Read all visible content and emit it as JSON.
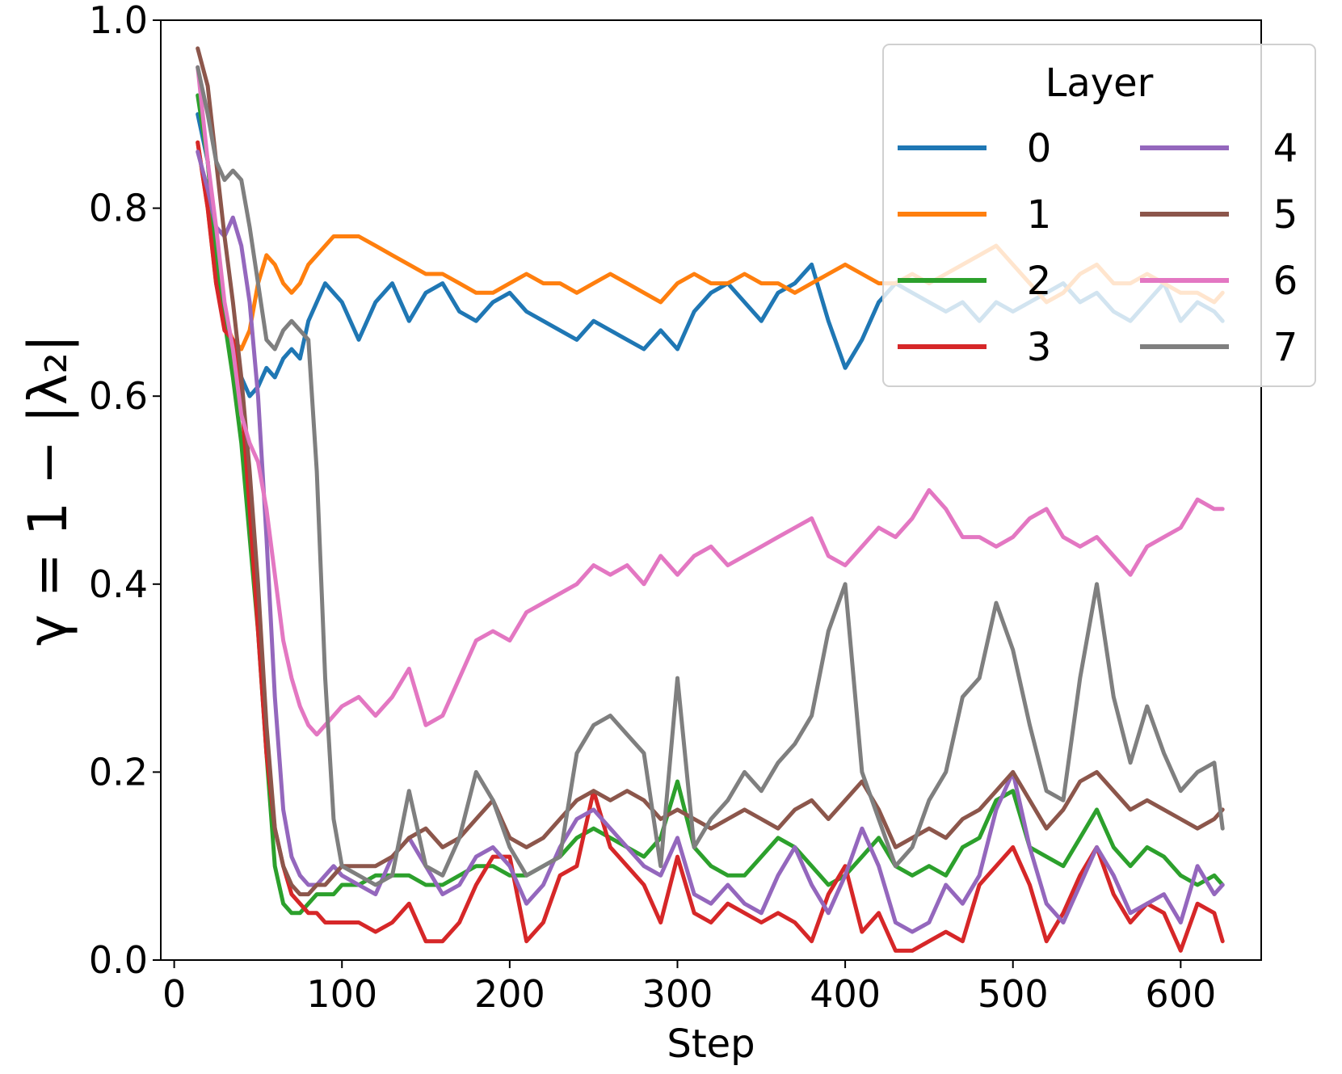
{
  "chart_data": {
    "type": "line",
    "title": "",
    "xlabel": "Step",
    "ylabel": "γ = 1 − |λ₂|",
    "xlim": [
      -8,
      648
    ],
    "ylim": [
      0.0,
      1.0
    ],
    "x_ticks": [
      0,
      100,
      200,
      300,
      400,
      500,
      600
    ],
    "y_ticks": [
      0.0,
      0.2,
      0.4,
      0.6,
      0.8,
      1.0
    ],
    "x_tick_labels": [
      "0",
      "100",
      "200",
      "300",
      "400",
      "500",
      "600"
    ],
    "y_tick_labels": [
      "0.0",
      "0.2",
      "0.4",
      "0.6",
      "0.8",
      "1.0"
    ],
    "grid": false,
    "legend": {
      "title": "Layer",
      "placement": "top-right",
      "columns": 2
    },
    "x": [
      14,
      20,
      25,
      30,
      35,
      40,
      45,
      50,
      55,
      60,
      65,
      70,
      75,
      80,
      85,
      90,
      95,
      100,
      110,
      120,
      130,
      140,
      150,
      160,
      170,
      180,
      190,
      200,
      210,
      220,
      230,
      240,
      250,
      260,
      270,
      280,
      290,
      300,
      310,
      320,
      330,
      340,
      350,
      360,
      370,
      380,
      390,
      400,
      410,
      420,
      430,
      440,
      450,
      460,
      470,
      480,
      490,
      500,
      510,
      520,
      530,
      540,
      550,
      560,
      570,
      580,
      590,
      600,
      610,
      620,
      625
    ],
    "series": [
      {
        "name": "0",
        "color": "#1f77b4",
        "values": [
          0.9,
          0.85,
          0.75,
          0.68,
          0.64,
          0.62,
          0.6,
          0.61,
          0.63,
          0.62,
          0.64,
          0.65,
          0.64,
          0.68,
          0.7,
          0.72,
          0.71,
          0.7,
          0.66,
          0.7,
          0.72,
          0.68,
          0.71,
          0.72,
          0.69,
          0.68,
          0.7,
          0.71,
          0.69,
          0.68,
          0.67,
          0.66,
          0.68,
          0.67,
          0.66,
          0.65,
          0.67,
          0.65,
          0.69,
          0.71,
          0.72,
          0.7,
          0.68,
          0.71,
          0.72,
          0.74,
          0.68,
          0.63,
          0.66,
          0.7,
          0.72,
          0.71,
          0.7,
          0.69,
          0.7,
          0.68,
          0.7,
          0.69,
          0.7,
          0.71,
          0.72,
          0.7,
          0.71,
          0.69,
          0.68,
          0.7,
          0.72,
          0.68,
          0.7,
          0.69,
          0.68
        ]
      },
      {
        "name": "1",
        "color": "#ff7f0e",
        "values": [
          0.87,
          0.8,
          0.72,
          0.68,
          0.66,
          0.65,
          0.67,
          0.72,
          0.75,
          0.74,
          0.72,
          0.71,
          0.72,
          0.74,
          0.75,
          0.76,
          0.77,
          0.77,
          0.77,
          0.76,
          0.75,
          0.74,
          0.73,
          0.73,
          0.72,
          0.71,
          0.71,
          0.72,
          0.73,
          0.72,
          0.72,
          0.71,
          0.72,
          0.73,
          0.72,
          0.71,
          0.7,
          0.72,
          0.73,
          0.72,
          0.72,
          0.73,
          0.72,
          0.72,
          0.71,
          0.72,
          0.73,
          0.74,
          0.73,
          0.72,
          0.72,
          0.73,
          0.72,
          0.73,
          0.74,
          0.75,
          0.76,
          0.74,
          0.72,
          0.7,
          0.71,
          0.73,
          0.74,
          0.72,
          0.72,
          0.73,
          0.72,
          0.71,
          0.71,
          0.7,
          0.71
        ]
      },
      {
        "name": "2",
        "color": "#2ca02c",
        "values": [
          0.92,
          0.85,
          0.75,
          0.68,
          0.62,
          0.55,
          0.45,
          0.35,
          0.22,
          0.1,
          0.06,
          0.05,
          0.05,
          0.06,
          0.07,
          0.07,
          0.07,
          0.08,
          0.08,
          0.09,
          0.09,
          0.09,
          0.08,
          0.08,
          0.09,
          0.1,
          0.1,
          0.09,
          0.09,
          0.1,
          0.11,
          0.13,
          0.14,
          0.13,
          0.12,
          0.11,
          0.13,
          0.19,
          0.12,
          0.1,
          0.09,
          0.09,
          0.11,
          0.13,
          0.12,
          0.1,
          0.08,
          0.09,
          0.11,
          0.13,
          0.1,
          0.09,
          0.1,
          0.09,
          0.12,
          0.13,
          0.17,
          0.18,
          0.12,
          0.11,
          0.1,
          0.13,
          0.16,
          0.12,
          0.1,
          0.12,
          0.11,
          0.09,
          0.08,
          0.09,
          0.08
        ]
      },
      {
        "name": "3",
        "color": "#d62728",
        "values": [
          0.87,
          0.8,
          0.72,
          0.67,
          0.66,
          0.6,
          0.48,
          0.35,
          0.22,
          0.14,
          0.1,
          0.07,
          0.06,
          0.05,
          0.05,
          0.04,
          0.04,
          0.04,
          0.04,
          0.03,
          0.04,
          0.06,
          0.02,
          0.02,
          0.04,
          0.08,
          0.11,
          0.11,
          0.02,
          0.04,
          0.09,
          0.1,
          0.18,
          0.12,
          0.1,
          0.08,
          0.04,
          0.11,
          0.05,
          0.04,
          0.06,
          0.05,
          0.04,
          0.05,
          0.04,
          0.02,
          0.07,
          0.1,
          0.03,
          0.05,
          0.01,
          0.01,
          0.02,
          0.03,
          0.02,
          0.08,
          0.1,
          0.12,
          0.08,
          0.02,
          0.05,
          0.09,
          0.12,
          0.07,
          0.04,
          0.06,
          0.05,
          0.01,
          0.06,
          0.05,
          0.02
        ]
      },
      {
        "name": "4",
        "color": "#9467bd",
        "values": [
          0.86,
          0.82,
          0.78,
          0.77,
          0.79,
          0.76,
          0.7,
          0.6,
          0.45,
          0.28,
          0.16,
          0.11,
          0.09,
          0.08,
          0.08,
          0.09,
          0.1,
          0.09,
          0.08,
          0.07,
          0.11,
          0.13,
          0.1,
          0.07,
          0.08,
          0.11,
          0.12,
          0.1,
          0.06,
          0.08,
          0.12,
          0.15,
          0.16,
          0.14,
          0.12,
          0.1,
          0.09,
          0.13,
          0.07,
          0.06,
          0.08,
          0.06,
          0.05,
          0.09,
          0.12,
          0.08,
          0.05,
          0.09,
          0.14,
          0.1,
          0.04,
          0.03,
          0.04,
          0.08,
          0.06,
          0.09,
          0.16,
          0.2,
          0.12,
          0.06,
          0.04,
          0.08,
          0.12,
          0.09,
          0.05,
          0.06,
          0.07,
          0.04,
          0.1,
          0.07,
          0.08
        ]
      },
      {
        "name": "5",
        "color": "#8c564b",
        "values": [
          0.97,
          0.93,
          0.85,
          0.77,
          0.7,
          0.62,
          0.52,
          0.4,
          0.25,
          0.14,
          0.1,
          0.08,
          0.07,
          0.07,
          0.08,
          0.08,
          0.09,
          0.1,
          0.1,
          0.1,
          0.11,
          0.13,
          0.14,
          0.12,
          0.13,
          0.15,
          0.17,
          0.13,
          0.12,
          0.13,
          0.15,
          0.17,
          0.18,
          0.17,
          0.18,
          0.17,
          0.15,
          0.16,
          0.15,
          0.14,
          0.15,
          0.16,
          0.15,
          0.14,
          0.16,
          0.17,
          0.15,
          0.17,
          0.19,
          0.16,
          0.12,
          0.13,
          0.14,
          0.13,
          0.15,
          0.16,
          0.18,
          0.2,
          0.17,
          0.14,
          0.16,
          0.19,
          0.2,
          0.18,
          0.16,
          0.17,
          0.16,
          0.15,
          0.14,
          0.15,
          0.16
        ]
      },
      {
        "name": "6",
        "color": "#e377c2",
        "values": [
          0.95,
          0.85,
          0.78,
          0.7,
          0.65,
          0.58,
          0.55,
          0.53,
          0.48,
          0.41,
          0.34,
          0.3,
          0.27,
          0.25,
          0.24,
          0.25,
          0.26,
          0.27,
          0.28,
          0.26,
          0.28,
          0.31,
          0.25,
          0.26,
          0.3,
          0.34,
          0.35,
          0.34,
          0.37,
          0.38,
          0.39,
          0.4,
          0.42,
          0.41,
          0.42,
          0.4,
          0.43,
          0.41,
          0.43,
          0.44,
          0.42,
          0.43,
          0.44,
          0.45,
          0.46,
          0.47,
          0.43,
          0.42,
          0.44,
          0.46,
          0.45,
          0.47,
          0.5,
          0.48,
          0.45,
          0.45,
          0.44,
          0.45,
          0.47,
          0.48,
          0.45,
          0.44,
          0.45,
          0.43,
          0.41,
          0.44,
          0.45,
          0.46,
          0.49,
          0.48,
          0.48
        ]
      },
      {
        "name": "7",
        "color": "#7f7f7f",
        "values": [
          0.95,
          0.9,
          0.85,
          0.83,
          0.84,
          0.83,
          0.78,
          0.72,
          0.66,
          0.65,
          0.67,
          0.68,
          0.67,
          0.66,
          0.52,
          0.3,
          0.15,
          0.1,
          0.09,
          0.08,
          0.09,
          0.18,
          0.1,
          0.09,
          0.13,
          0.2,
          0.17,
          0.12,
          0.09,
          0.1,
          0.11,
          0.22,
          0.25,
          0.26,
          0.24,
          0.22,
          0.1,
          0.3,
          0.12,
          0.15,
          0.17,
          0.2,
          0.18,
          0.21,
          0.23,
          0.26,
          0.35,
          0.4,
          0.2,
          0.15,
          0.1,
          0.12,
          0.17,
          0.2,
          0.28,
          0.3,
          0.38,
          0.33,
          0.25,
          0.18,
          0.17,
          0.3,
          0.4,
          0.28,
          0.21,
          0.27,
          0.22,
          0.18,
          0.2,
          0.21,
          0.14
        ]
      }
    ]
  }
}
